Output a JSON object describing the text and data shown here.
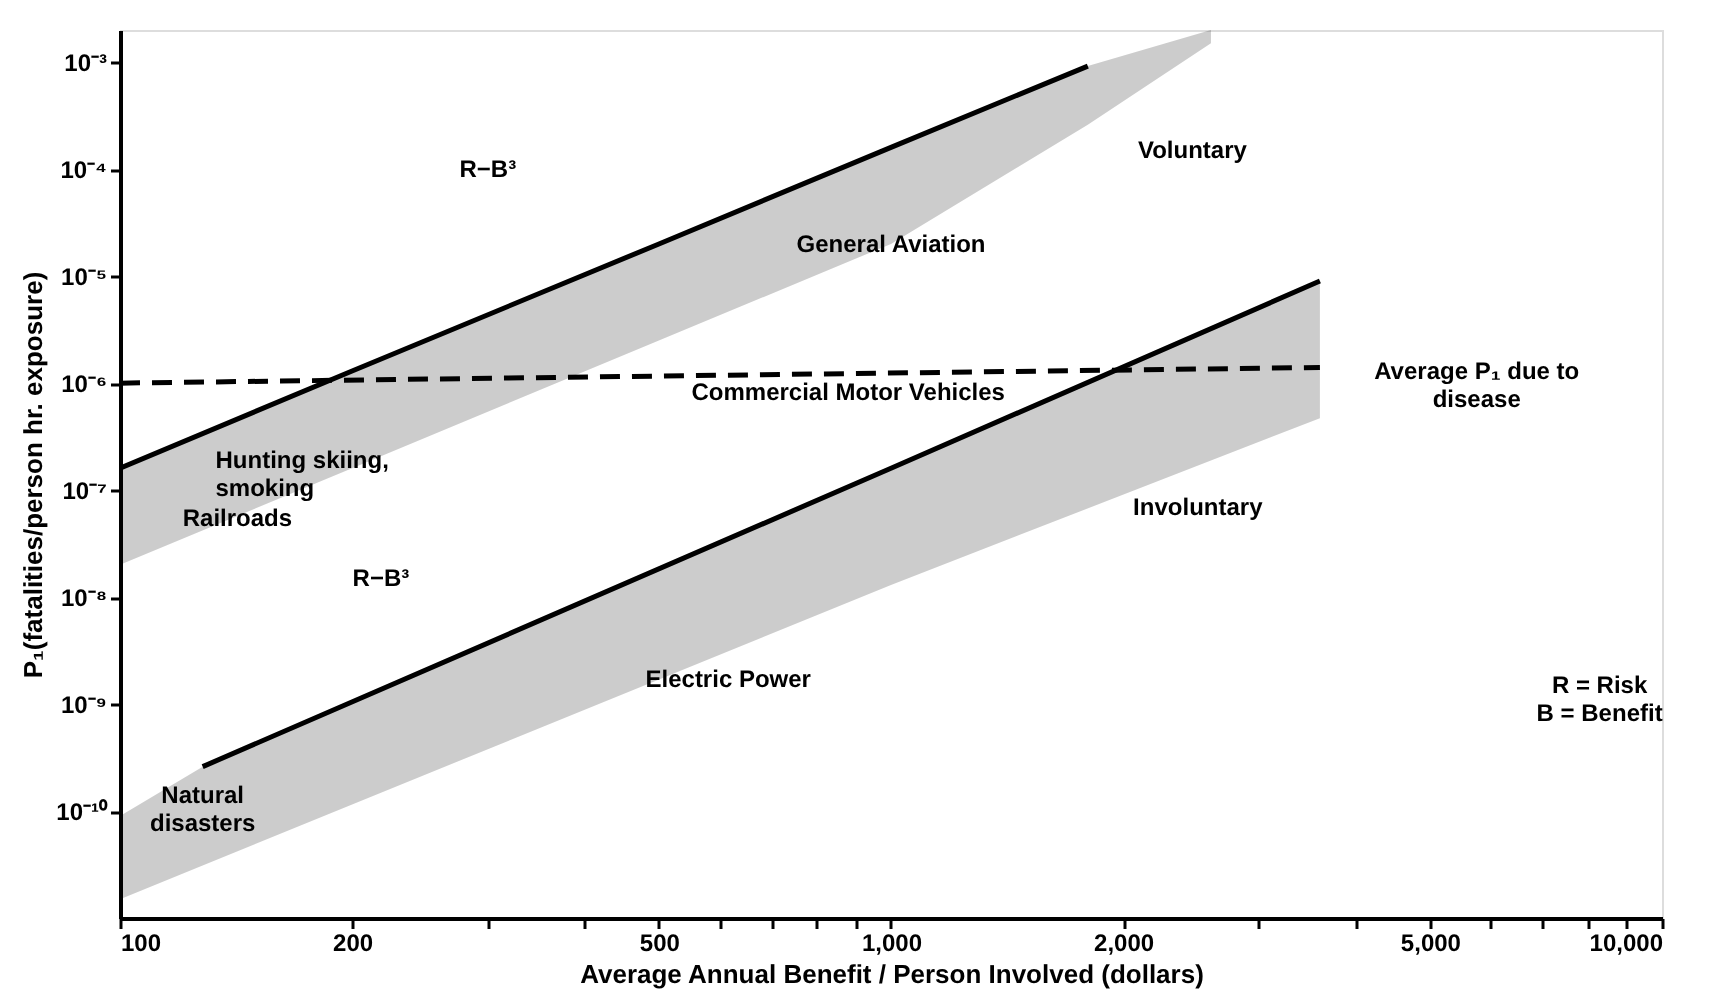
{
  "chart_data": {
    "type": "line",
    "xlabel": "Average Annual Benefit / Person Involved (dollars)",
    "ylabel": "P₁(fatalities/person hr. exposure)",
    "log": "xy",
    "grid": false,
    "marker": "none",
    "xlim": [
      100,
      10000
    ],
    "ylim": [
      1e-11,
      0.002
    ],
    "xticks": [
      100,
      200,
      {
        "value": 300,
        "label": null
      },
      {
        "value": 400,
        "label": null
      },
      500,
      {
        "value": 600,
        "label": null
      },
      {
        "value": 700,
        "label": null
      },
      {
        "value": 800,
        "label": null
      },
      {
        "value": 900,
        "label": null
      },
      {
        "value": 1000,
        "label": "1,000"
      },
      {
        "value": 2000,
        "label": "2,000"
      },
      {
        "value": 3000,
        "label": null
      },
      {
        "value": 4000,
        "label": null
      },
      {
        "value": 5000,
        "label": "5,000"
      },
      {
        "value": 6000,
        "label": null
      },
      {
        "value": 7000,
        "label": null
      },
      {
        "value": 8000,
        "label": null
      },
      {
        "value": 9000,
        "label": null
      },
      {
        "value": 10000,
        "label": "10,000"
      }
    ],
    "yticks": [
      {
        "value": 0.001,
        "label": "10⁻³"
      },
      {
        "value": 0.0001,
        "label": "10⁻⁴"
      },
      {
        "value": 1e-05,
        "label": "10⁻⁵"
      },
      {
        "value": 1e-06,
        "label": "10⁻⁶"
      },
      {
        "value": 1e-07,
        "label": "10⁻⁷"
      },
      {
        "value": 1e-08,
        "label": "10⁻⁸"
      },
      {
        "value": 1e-09,
        "label": "10⁻⁹"
      },
      {
        "value": 1e-10,
        "label": "10⁻¹⁰"
      }
    ],
    "series": [
      {
        "color": "#000000",
        "line_style": "solid",
        "x": [
          100,
          200,
          500,
          1000,
          1800,
          2600
        ],
        "values": [
          1.6e-07,
          1.3e-06,
          2e-05,
          0.00016,
          0.00092,
          null
        ],
        "upper": [
          1.6e-07,
          1.3e-06,
          2e-05,
          0.00016,
          0.00092,
          0.002
        ],
        "lower": [
          2e-08,
          1.6e-07,
          2.5e-06,
          2e-05,
          0.00026,
          0.0015
        ]
      },
      {
        "color": "#000000",
        "line_style": "solid",
        "x": [
          100,
          128,
          1000,
          3600
        ],
        "values": [
          null,
          2.6e-10,
          1.6e-07,
          9e-06
        ],
        "upper": [
          9e-11,
          2.6e-10,
          1.6e-07,
          9e-06
        ],
        "lower": [
          1.5e-11,
          3.1e-11,
          1.3e-08,
          4.7e-07
        ]
      },
      {
        "color": "#000000",
        "line_style": "dashed",
        "x": [
          100,
          3600
        ],
        "values": [
          1e-06,
          1.4e-06
        ]
      }
    ],
    "annotations": [
      "R−B³",
      "Voluntary",
      "General Aviation",
      "Commercial Motor Vehicles",
      "Average P₁ due to\ndisease",
      "Hunting skiing,\nsmoking",
      "Railroads",
      "Involuntary",
      "R−B³",
      "Electric Power",
      "Natural\ndisasters",
      "R = Risk\nB = Benefit"
    ]
  }
}
